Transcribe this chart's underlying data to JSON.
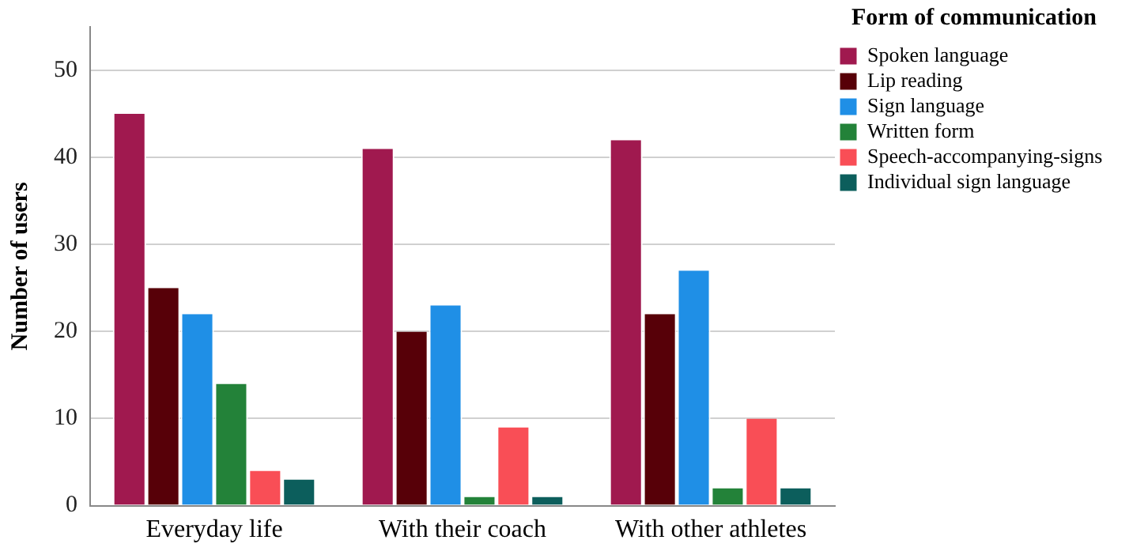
{
  "chart_data": {
    "type": "bar",
    "ylabel": "Number of users",
    "legend_title": "Form of communication",
    "categories": [
      "Everyday life",
      "With their coach",
      "With other athletes"
    ],
    "series": [
      {
        "name": "Spoken language",
        "color": "#a0194f",
        "values": [
          45,
          41,
          42
        ]
      },
      {
        "name": "Lip reading",
        "color": "#570008",
        "values": [
          25,
          20,
          22
        ]
      },
      {
        "name": "Sign language",
        "color": "#1f8fe6",
        "values": [
          22,
          23,
          27
        ]
      },
      {
        "name": "Written form",
        "color": "#238239",
        "values": [
          14,
          1,
          2
        ]
      },
      {
        "name": "Speech-accompanying-signs",
        "color": "#f94e56",
        "values": [
          4,
          9,
          10
        ]
      },
      {
        "name": "Individual sign language",
        "color": "#0c5e5c",
        "values": [
          3,
          1,
          2
        ]
      }
    ],
    "ylim": [
      0,
      55
    ],
    "yticks": [
      0,
      10,
      20,
      30,
      40,
      50
    ],
    "grid": "y",
    "legend": "top right"
  }
}
